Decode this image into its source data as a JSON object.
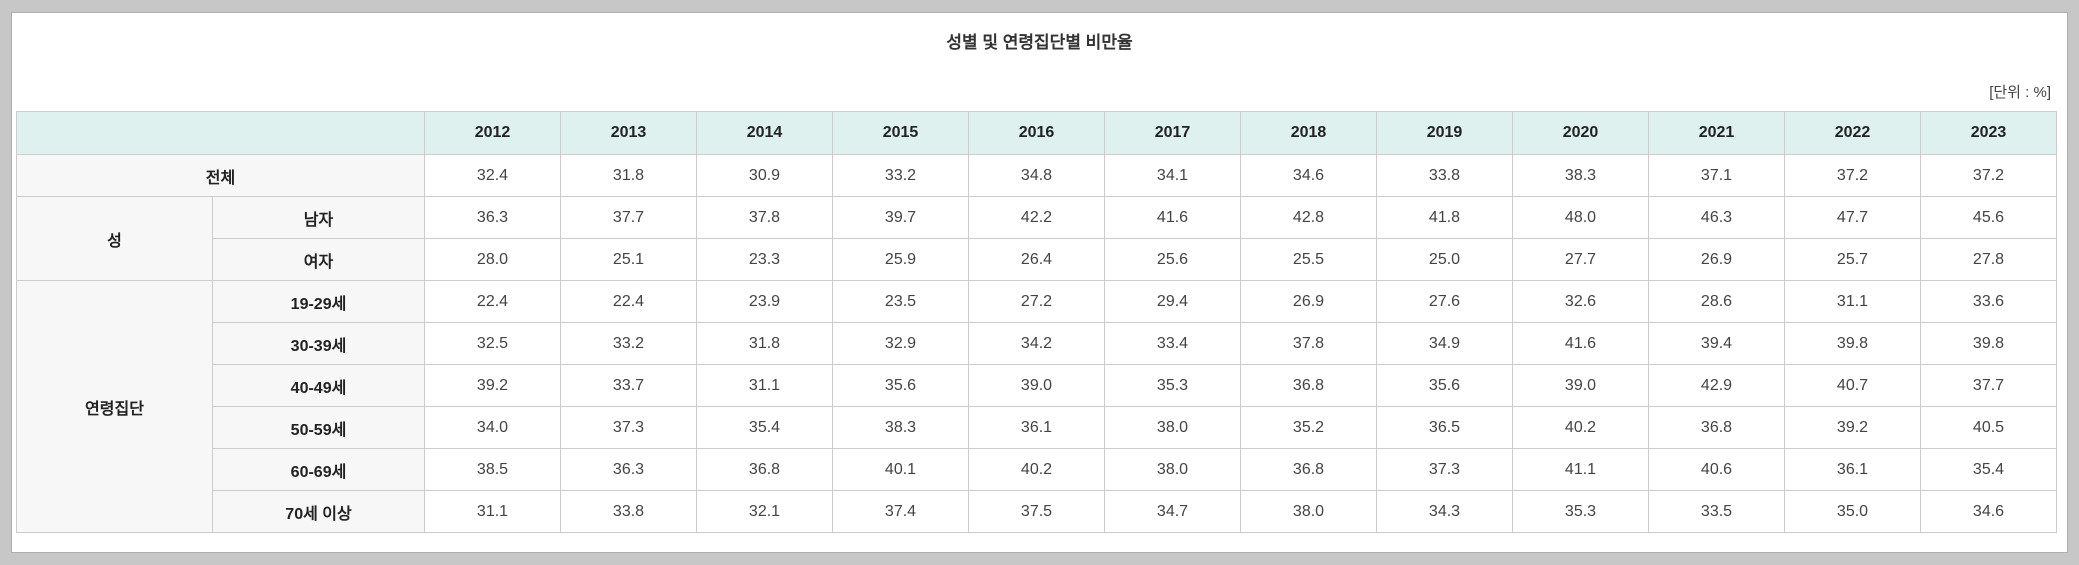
{
  "page": {
    "title": "성별 및 연령집단별 비만율",
    "unit_label": "[단위 : %]"
  },
  "colors": {
    "header_bg": "#def1ef",
    "label_bg": "#f7f7f7",
    "border": "#cccccc",
    "page_bg": "#c7c7c7"
  },
  "chart_data": {
    "type": "table",
    "title": "성별 및 연령집단별 비만율",
    "unit": "%",
    "columns": [
      "2012",
      "2013",
      "2014",
      "2015",
      "2016",
      "2017",
      "2018",
      "2019",
      "2020",
      "2021",
      "2022",
      "2023"
    ],
    "row_groups": [
      {
        "group_label": "",
        "span_all": true,
        "rows": [
          {
            "label": "전체",
            "values": [
              32.4,
              31.8,
              30.9,
              33.2,
              34.8,
              34.1,
              34.6,
              33.8,
              38.3,
              37.1,
              37.2,
              37.2
            ]
          }
        ]
      },
      {
        "group_label": "성",
        "span_all": false,
        "rows": [
          {
            "label": "남자",
            "values": [
              36.3,
              37.7,
              37.8,
              39.7,
              42.2,
              41.6,
              42.8,
              41.8,
              48.0,
              46.3,
              47.7,
              45.6
            ]
          },
          {
            "label": "여자",
            "values": [
              28.0,
              25.1,
              23.3,
              25.9,
              26.4,
              25.6,
              25.5,
              25.0,
              27.7,
              26.9,
              25.7,
              27.8
            ]
          }
        ]
      },
      {
        "group_label": "연령집단",
        "span_all": false,
        "rows": [
          {
            "label": "19-29세",
            "values": [
              22.4,
              22.4,
              23.9,
              23.5,
              27.2,
              29.4,
              26.9,
              27.6,
              32.6,
              28.6,
              31.1,
              33.6
            ]
          },
          {
            "label": "30-39세",
            "values": [
              32.5,
              33.2,
              31.8,
              32.9,
              34.2,
              33.4,
              37.8,
              34.9,
              41.6,
              39.4,
              39.8,
              39.8
            ]
          },
          {
            "label": "40-49세",
            "values": [
              39.2,
              33.7,
              31.1,
              35.6,
              39.0,
              35.3,
              36.8,
              35.6,
              39.0,
              42.9,
              40.7,
              37.7
            ]
          },
          {
            "label": "50-59세",
            "values": [
              34.0,
              37.3,
              35.4,
              38.3,
              36.1,
              38.0,
              35.2,
              36.5,
              40.2,
              36.8,
              39.2,
              40.5
            ]
          },
          {
            "label": "60-69세",
            "values": [
              38.5,
              36.3,
              36.8,
              40.1,
              40.2,
              38.0,
              36.8,
              37.3,
              41.1,
              40.6,
              36.1,
              35.4
            ]
          },
          {
            "label": "70세 이상",
            "values": [
              31.1,
              33.8,
              32.1,
              37.4,
              37.5,
              34.7,
              38.0,
              34.3,
              35.3,
              33.5,
              35.0,
              34.6
            ]
          }
        ]
      }
    ]
  }
}
